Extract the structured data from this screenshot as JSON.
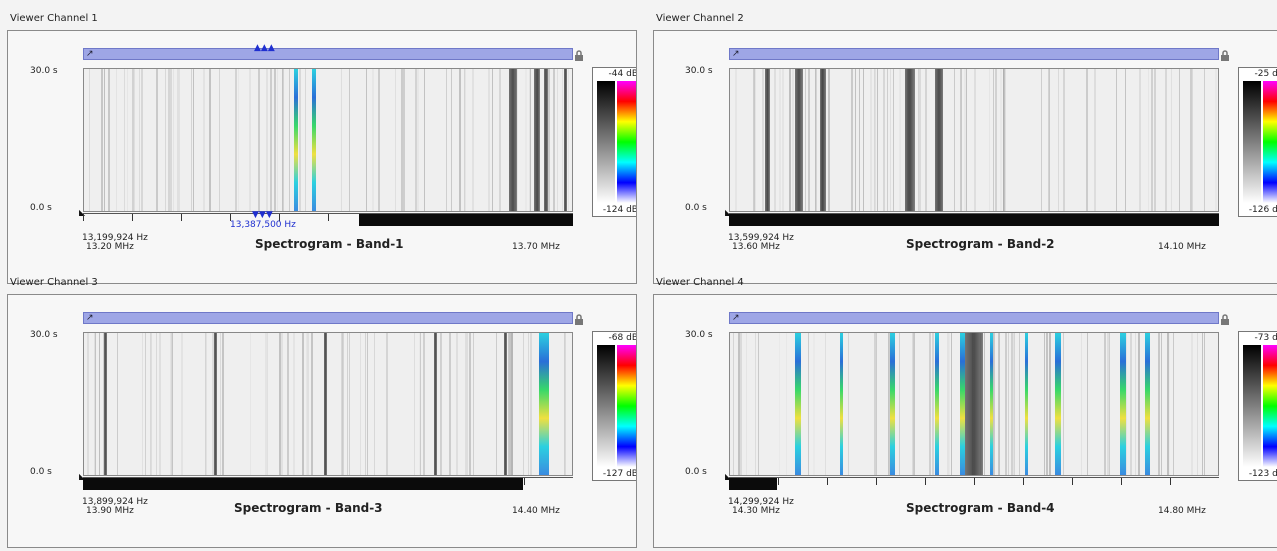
{
  "panels": [
    {
      "title": "Viewer Channel 1",
      "y_top": "30.0 s",
      "y_bottom": "0.0 s",
      "start_hz": "13,199,924 Hz",
      "start_mhz": "13.20 MHz",
      "end_mhz": "13.70 MHz",
      "band_title": "Spectrogram - Band-1",
      "legend_max": "-44 dB",
      "legend_min": "-124 dB",
      "marker_freq": "13,387,500 Hz"
    },
    {
      "title": "Viewer Channel 2",
      "y_top": "30.0 s",
      "y_bottom": "0.0 s",
      "start_hz": "13,599,924 Hz",
      "start_mhz": "13.60 MHz",
      "end_mhz": "14.10 MHz",
      "band_title": "Spectrogram - Band-2",
      "legend_max": "-25 dB",
      "legend_min": "-126 dB"
    },
    {
      "title": "Viewer Channel 3",
      "y_top": "30.0 s",
      "y_bottom": "0.0 s",
      "start_hz": "13,899,924 Hz",
      "start_mhz": "13.90 MHz",
      "end_mhz": "14.40 MHz",
      "band_title": "Spectrogram - Band-3",
      "legend_max": "-68 dB",
      "legend_min": "-127 dB"
    },
    {
      "title": "Viewer Channel 4",
      "y_top": "30.0 s",
      "y_bottom": "0.0 s",
      "start_hz": "14,299,924 Hz",
      "start_mhz": "14.30 MHz",
      "end_mhz": "14.80 MHz",
      "band_title": "Spectrogram - Band-4",
      "legend_max": "-73 dB",
      "legend_min": "-123 dB"
    }
  ],
  "icons": {
    "lock": "lock-icon",
    "cursor": "cursor-arrow-icon",
    "marker": "frequency-marker-icon"
  }
}
